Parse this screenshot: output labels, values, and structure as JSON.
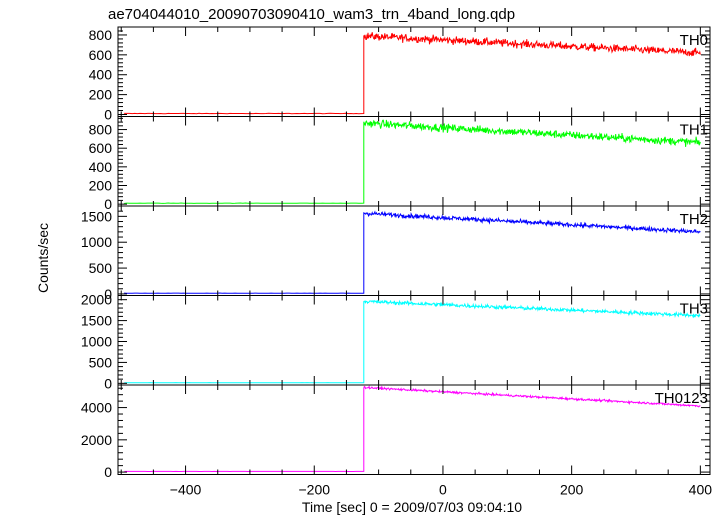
{
  "chart_data": {
    "type": "line",
    "title": "ae704044010_20090703090410_wam3_trn_4band_long.qdp",
    "xlabel": "Time [sec] 0 = 2009/07/03 09:04:10",
    "ylabel": "Counts/sec",
    "xlim": [
      -505,
      415
    ],
    "x_ticks": [
      -400,
      -200,
      0,
      200,
      400
    ],
    "x_tick_labels": [
      "−400",
      "−200",
      "0",
      "200",
      "400"
    ],
    "grid": false,
    "panels": [
      {
        "name": "TH0",
        "color": "#ff0000",
        "ylim": [
          -20,
          880
        ],
        "y_ticks": [
          0,
          200,
          400,
          600,
          800
        ],
        "pre_level": 10,
        "step_x": -123,
        "post_start_level": 790,
        "post_end_level": 620,
        "noise": 28,
        "x_start": -495,
        "x_end": 400
      },
      {
        "name": "TH1",
        "color": "#00ff00",
        "ylim": [
          -20,
          940
        ],
        "y_ticks": [
          0,
          200,
          400,
          600,
          800
        ],
        "pre_level": 10,
        "step_x": -123,
        "post_start_level": 870,
        "post_end_level": 660,
        "noise": 30,
        "x_start": -495,
        "x_end": 400
      },
      {
        "name": "TH2",
        "color": "#0000ff",
        "ylim": [
          -30,
          1700
        ],
        "y_ticks": [
          0,
          500,
          1000,
          1500
        ],
        "pre_level": 15,
        "step_x": -123,
        "post_start_level": 1560,
        "post_end_level": 1200,
        "noise": 30,
        "x_start": -495,
        "x_end": 400
      },
      {
        "name": "TH3",
        "color": "#00ffff",
        "ylim": [
          -40,
          2100
        ],
        "y_ticks": [
          0,
          500,
          1000,
          1500,
          2000
        ],
        "pre_level": 15,
        "step_x": -123,
        "post_start_level": 1960,
        "post_end_level": 1620,
        "noise": 32,
        "x_start": -495,
        "x_end": 400
      },
      {
        "name": "TH0123",
        "color": "#ff00ff",
        "ylim": [
          -150,
          5400
        ],
        "y_ticks": [
          0,
          2000,
          4000
        ],
        "pre_level": 40,
        "step_x": -123,
        "post_start_level": 5250,
        "post_end_level": 4100,
        "noise": 45,
        "x_start": -495,
        "x_end": 400
      }
    ]
  }
}
